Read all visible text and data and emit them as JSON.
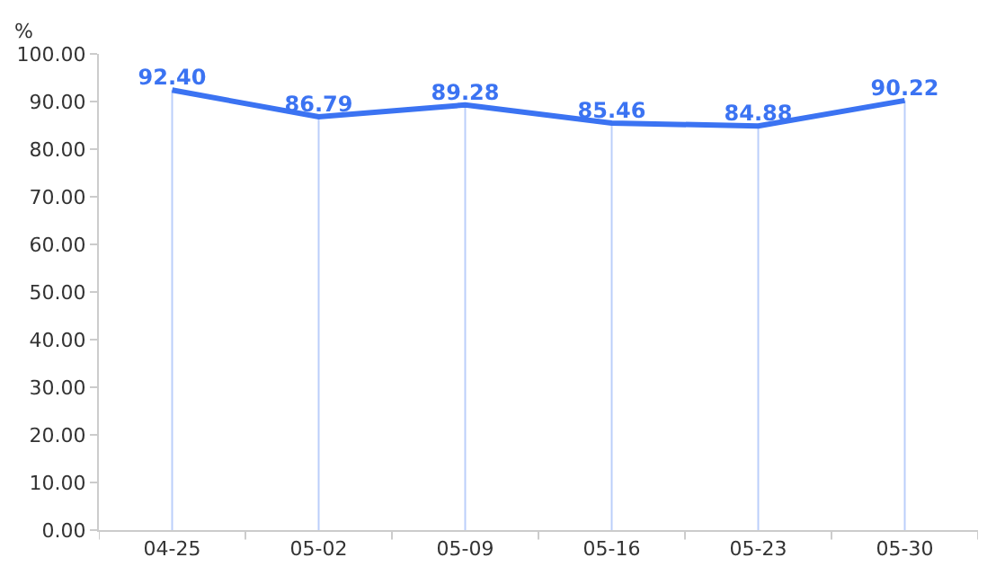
{
  "chart_data": {
    "type": "line",
    "ylabel": "%",
    "categories": [
      "04-25",
      "05-02",
      "05-09",
      "05-16",
      "05-23",
      "05-30"
    ],
    "series": [
      {
        "color": "#3b73f2",
        "values": [
          92.4,
          86.79,
          89.28,
          85.46,
          84.88,
          90.22
        ],
        "value_labels": [
          "92.40",
          "86.79",
          "89.28",
          "85.46",
          "84.88",
          "90.22"
        ]
      }
    ],
    "ylim": [
      0,
      100
    ],
    "yticks": [
      {
        "value": 0,
        "label": "0.00"
      },
      {
        "value": 10,
        "label": "10.00"
      },
      {
        "value": 20,
        "label": "20.00"
      },
      {
        "value": 30,
        "label": "30.00"
      },
      {
        "value": 40,
        "label": "40.00"
      },
      {
        "value": 50,
        "label": "50.00"
      },
      {
        "value": 60,
        "label": "60.00"
      },
      {
        "value": 70,
        "label": "70.00"
      },
      {
        "value": 80,
        "label": "80.00"
      },
      {
        "value": 90,
        "label": "90.00"
      },
      {
        "value": 100,
        "label": "100.00"
      }
    ],
    "grid": "x",
    "marker": "none",
    "line_style": "solid"
  }
}
